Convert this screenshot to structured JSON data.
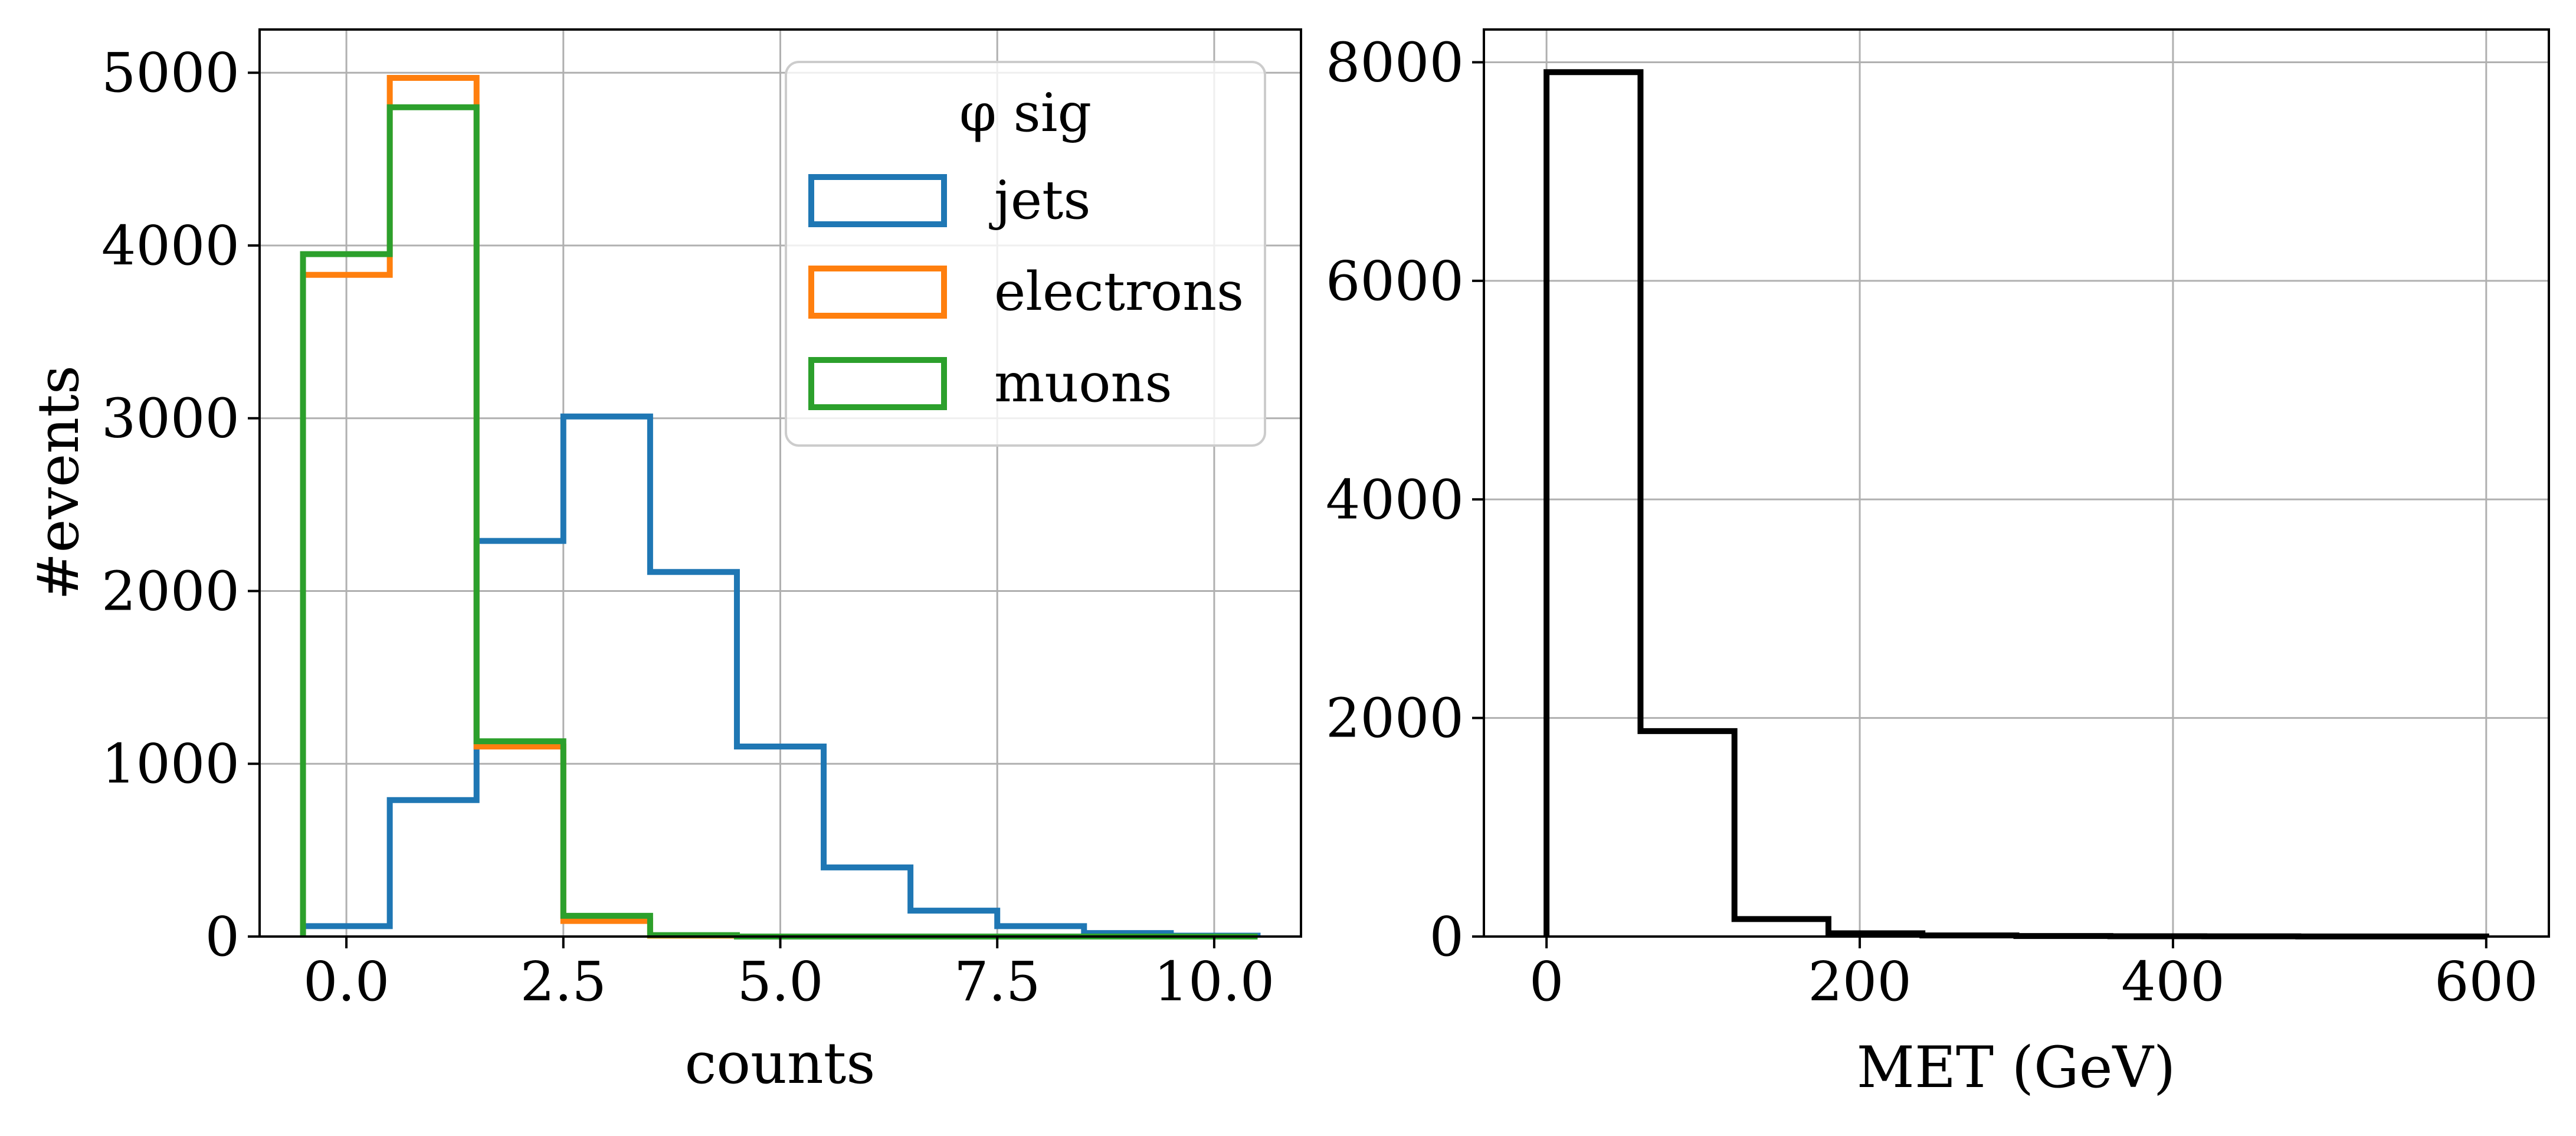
{
  "chart_data": [
    {
      "type": "bar",
      "style": "step-histogram",
      "xlabel": "counts",
      "ylabel": "#events",
      "xlim": [
        -1.0,
        11.0
      ],
      "ylim": [
        0,
        5250
      ],
      "xticks": [
        0.0,
        2.5,
        5.0,
        7.5,
        10.0
      ],
      "xtick_labels": [
        "0.0",
        "2.5",
        "5.0",
        "7.5",
        "10.0"
      ],
      "yticks": [
        0,
        1000,
        2000,
        3000,
        4000,
        5000
      ],
      "ytick_labels": [
        "0",
        "1000",
        "2000",
        "3000",
        "4000",
        "5000"
      ],
      "grid": true,
      "legend": {
        "title": "φ sig",
        "placement": "top-right"
      },
      "bin_edges": [
        -0.5,
        0.5,
        1.5,
        2.5,
        3.5,
        4.5,
        5.5,
        6.5,
        7.5,
        8.5,
        9.5,
        10.5
      ],
      "series": [
        {
          "name": "jets",
          "color": "#1f77b4",
          "values": [
            60,
            790,
            2290,
            3010,
            2110,
            1100,
            400,
            150,
            60,
            20,
            5
          ]
        },
        {
          "name": "electrons",
          "color": "#ff7f0e",
          "values": [
            3830,
            4970,
            1100,
            90,
            5,
            0,
            0,
            0,
            0,
            0,
            0
          ]
        },
        {
          "name": "muons",
          "color": "#2ca02c",
          "values": [
            3950,
            4800,
            1130,
            120,
            8,
            0,
            0,
            0,
            0,
            0,
            0
          ]
        }
      ]
    },
    {
      "type": "bar",
      "style": "step-histogram",
      "xlabel": "MET (GeV)",
      "ylabel": "",
      "xlim": [
        -40,
        640
      ],
      "ylim": [
        0,
        8300
      ],
      "xticks": [
        0,
        200,
        400,
        600
      ],
      "xtick_labels": [
        "0",
        "200",
        "400",
        "600"
      ],
      "yticks": [
        0,
        2000,
        4000,
        6000,
        8000
      ],
      "ytick_labels": [
        "0",
        "2000",
        "4000",
        "6000",
        "8000"
      ],
      "grid": true,
      "bin_edges": [
        0,
        60,
        120,
        180,
        240,
        300,
        360,
        420,
        480,
        540,
        600
      ],
      "series": [
        {
          "name": "MET",
          "color": "#000000",
          "values": [
            7910,
            1880,
            160,
            30,
            10,
            5,
            3,
            2,
            1,
            1
          ]
        }
      ]
    }
  ]
}
